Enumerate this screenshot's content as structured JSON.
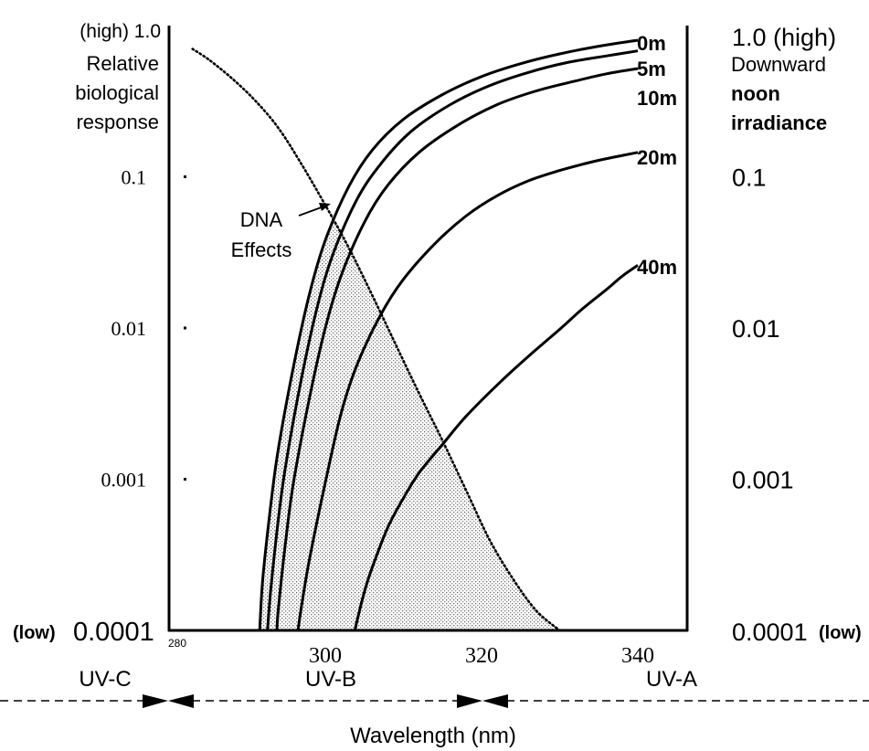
{
  "chart_data": {
    "type": "line",
    "x_axis": {
      "label": "Wavelength (nm)",
      "range": [
        280,
        347
      ],
      "ticks": [
        {
          "value": 280,
          "label": "280"
        },
        {
          "value": 300,
          "label": "300"
        },
        {
          "value": 320,
          "label": "320"
        },
        {
          "value": 340,
          "label": "340"
        }
      ]
    },
    "left_axis": {
      "label_lines": [
        "Relative",
        "biological",
        "response"
      ],
      "scale": "log",
      "range": [
        0.0001,
        1.0
      ],
      "top_label": "(high) 1.0",
      "bottom_label_low": "(low)",
      "bottom_label_value": "0.0001",
      "ticks": [
        {
          "value": 0.1,
          "label": "0.1"
        },
        {
          "value": 0.01,
          "label": "0.01"
        },
        {
          "value": 0.001,
          "label": "0.001"
        }
      ]
    },
    "right_axis": {
      "label_lines": [
        "Downward",
        "noon",
        "irradiance"
      ],
      "scale": "log",
      "range": [
        0.0001,
        1.0
      ],
      "top_label": "1.0 (high)",
      "bottom_label_value": "0.0001",
      "bottom_label_low": "(low)",
      "ticks": [
        {
          "value": 0.1,
          "label": "0.1"
        },
        {
          "value": 0.01,
          "label": "0.01"
        },
        {
          "value": 0.001,
          "label": "0.001"
        }
      ]
    },
    "series": [
      {
        "name": "0m",
        "x": [
          291.6,
          292,
          293,
          294,
          296,
          298,
          300,
          303,
          306,
          310,
          315,
          320,
          325,
          330,
          335,
          340
        ],
        "y": [
          0.0001,
          0.00022,
          0.00066,
          0.0016,
          0.0058,
          0.017,
          0.038,
          0.086,
          0.15,
          0.24,
          0.35,
          0.46,
          0.56,
          0.65,
          0.73,
          0.8
        ]
      },
      {
        "name": "5m",
        "x": [
          292.6,
          293,
          294,
          295,
          297,
          299,
          301,
          304,
          307,
          311,
          316,
          321,
          326,
          331,
          336,
          340
        ],
        "y": [
          0.0001,
          0.00018,
          0.00055,
          0.0013,
          0.0048,
          0.014,
          0.031,
          0.07,
          0.12,
          0.2,
          0.3,
          0.4,
          0.49,
          0.57,
          0.63,
          0.68
        ]
      },
      {
        "name": "10m",
        "x": [
          293.8,
          294,
          295,
          296,
          298,
          300,
          302,
          305,
          308,
          312,
          317,
          322,
          327,
          332,
          336,
          340
        ],
        "y": [
          0.0001,
          0.00014,
          0.00042,
          0.001,
          0.0035,
          0.01,
          0.022,
          0.05,
          0.088,
          0.145,
          0.22,
          0.3,
          0.37,
          0.43,
          0.48,
          0.52
        ]
      },
      {
        "name": "20m",
        "x": [
          296.5,
          297,
          298,
          300,
          302,
          304,
          307,
          310,
          314,
          318,
          322,
          326,
          330,
          334,
          337,
          340
        ],
        "y": [
          0.0001,
          0.00015,
          0.0003,
          0.00095,
          0.0027,
          0.0056,
          0.012,
          0.021,
          0.036,
          0.055,
          0.075,
          0.094,
          0.11,
          0.125,
          0.135,
          0.145
        ]
      },
      {
        "name": "40m",
        "x": [
          303.8,
          304,
          305,
          306,
          308,
          310,
          312,
          315,
          318,
          322,
          326,
          330,
          333,
          336,
          338,
          340
        ],
        "y": [
          0.0001,
          0.000112,
          0.00018,
          0.00026,
          0.00048,
          0.00075,
          0.0011,
          0.0017,
          0.0026,
          0.0042,
          0.0065,
          0.0098,
          0.0135,
          0.018,
          0.022,
          0.026
        ]
      }
    ],
    "dna_series": {
      "label_lines": [
        "DNA",
        "Effects"
      ],
      "style": "dotted",
      "x": [
        283,
        285,
        288,
        291,
        294,
        297,
        300,
        303,
        306,
        309,
        312,
        315,
        318,
        321,
        324,
        327,
        330
      ],
      "y": [
        0.7,
        0.6,
        0.45,
        0.32,
        0.21,
        0.12,
        0.065,
        0.034,
        0.0165,
        0.0078,
        0.0037,
        0.0018,
        0.00085,
        0.0004,
        0.00022,
        0.000135,
        0.0001
      ]
    },
    "shaded_region": "overlap of DNA action spectrum and 0m irradiance",
    "bands": [
      {
        "label": "UV-C"
      },
      {
        "label": "UV-B"
      },
      {
        "label": "UV-A"
      }
    ],
    "grid": false
  }
}
